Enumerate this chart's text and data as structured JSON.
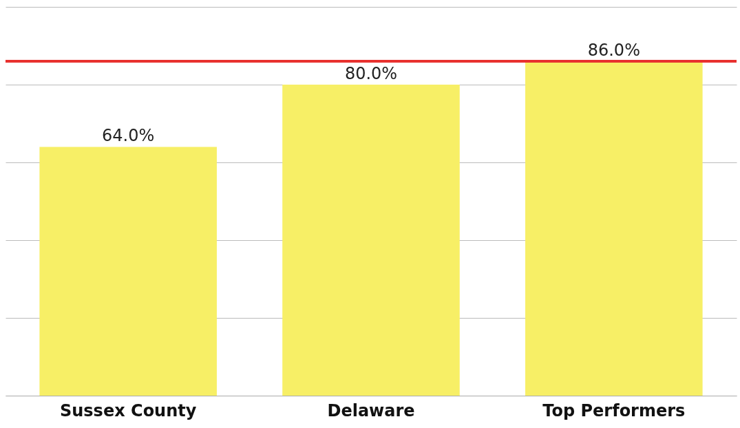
{
  "chart_data": {
    "type": "bar",
    "categories": [
      "Sussex County",
      "Delaware",
      "Top Performers"
    ],
    "values": [
      64.0,
      80.0,
      86.0
    ],
    "color": "#f7ef66",
    "value_labels": [
      "64.0%",
      "80.0%",
      "86.0%"
    ],
    "ylim": [
      0,
      100
    ],
    "yticks": [
      {
        "value": 0,
        "label": null
      },
      {
        "value": 20,
        "label": null
      },
      {
        "value": 40,
        "label": null
      },
      {
        "value": 60,
        "label": null
      },
      {
        "value": 80,
        "label": null
      },
      {
        "value": 100,
        "label": null
      }
    ],
    "tick_labels": "x",
    "grid": "y",
    "ref_lines": [
      {
        "axis": "y",
        "value": 86,
        "color": "#e8312f"
      }
    ]
  }
}
